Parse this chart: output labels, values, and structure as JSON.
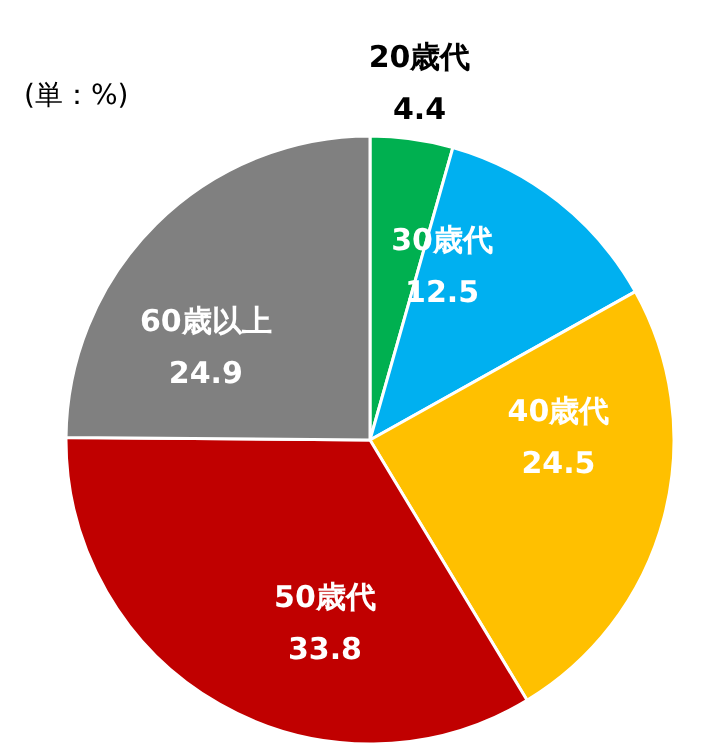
{
  "chart_data": {
    "type": "pie",
    "categories": [
      "20歳代",
      "30歳代",
      "40歳代",
      "50歳代",
      "60歳以上"
    ],
    "values": [
      4.4,
      12.5,
      24.5,
      33.8,
      24.9
    ],
    "colors": [
      "#00b050",
      "#00b0f0",
      "#ffc000",
      "#c00000",
      "#808080"
    ],
    "data_labels": true,
    "annotations": [
      "(単：%)"
    ]
  }
}
